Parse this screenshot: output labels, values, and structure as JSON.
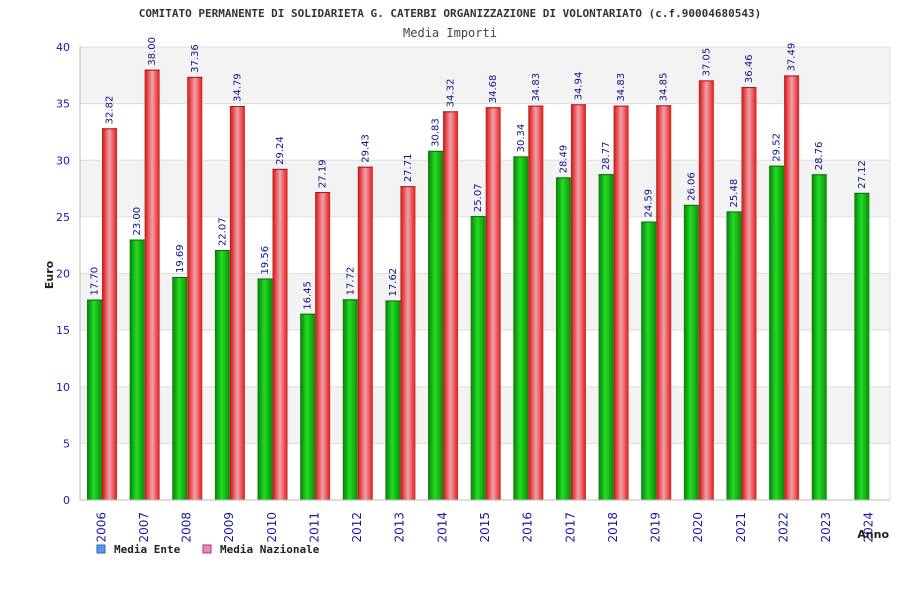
{
  "chart_data": {
    "type": "bar",
    "title": "COMITATO PERMANENTE DI SOLIDARIETA G. CATERBI ORGANIZZAZIONE DI VOLONTARIATO (c.f.90004680543)",
    "subtitle": "Media Importi",
    "xlabel": "Anno",
    "ylabel": "Euro",
    "ylim": [
      0,
      40
    ],
    "yticks": [
      0,
      5,
      10,
      15,
      20,
      25,
      30,
      35,
      40
    ],
    "grid": true,
    "legend_position": "bottom-left",
    "categories": [
      "2006",
      "2007",
      "2008",
      "2009",
      "2010",
      "2011",
      "2012",
      "2013",
      "2014",
      "2015",
      "2016",
      "2017",
      "2018",
      "2019",
      "2020",
      "2021",
      "2022",
      "2023",
      "2024"
    ],
    "series": [
      {
        "name": "Media Ente",
        "color": "#00aa00",
        "legend_color": "#5599ee",
        "values": [
          17.7,
          23.0,
          19.69,
          22.07,
          19.56,
          16.45,
          17.72,
          17.62,
          30.83,
          25.07,
          30.34,
          28.49,
          28.77,
          24.59,
          26.06,
          25.48,
          29.52,
          28.76,
          27.12
        ],
        "labels": [
          "17.70",
          "23.00",
          "19.69",
          "22.07",
          "19.56",
          "16.45",
          "17.72",
          "17.62",
          "30.83",
          "25.07",
          "30.34",
          "28.49",
          "28.77",
          "24.59",
          "26.06",
          "25.48",
          "29.52",
          "28.76",
          "27.12"
        ]
      },
      {
        "name": "Media Nazionale",
        "color": "#ee2222",
        "legend_color": "#ee88bb",
        "values": [
          32.82,
          38.0,
          37.36,
          34.79,
          29.24,
          27.19,
          29.43,
          27.71,
          34.32,
          34.68,
          34.83,
          34.94,
          34.83,
          34.85,
          37.05,
          36.46,
          37.49,
          null,
          null
        ],
        "labels": [
          "32.82",
          "38.00",
          "37.36",
          "34.79",
          "29.24",
          "27.19",
          "29.43",
          "27.71",
          "34.32",
          "34.68",
          "34.83",
          "34.94",
          "34.83",
          "34.85",
          "37.05",
          "36.46",
          "37.49",
          "",
          ""
        ]
      }
    ]
  }
}
